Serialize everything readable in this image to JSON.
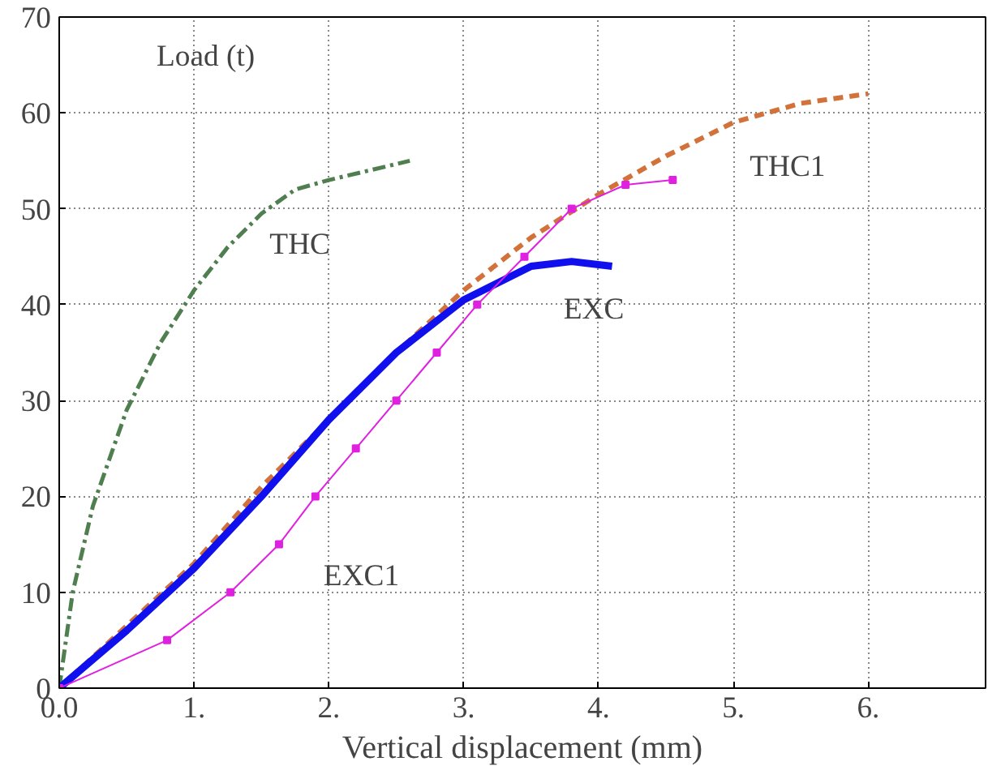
{
  "chart_data": {
    "type": "line",
    "xlabel": "Vertical displacement (mm)",
    "ylabel": "Load (t)",
    "xlim": [
      0,
      6.87
    ],
    "ylim": [
      0,
      70
    ],
    "xticks": [
      {
        "value": 0,
        "label": "0.0"
      },
      {
        "value": 1,
        "label": "1."
      },
      {
        "value": 2,
        "label": "2."
      },
      {
        "value": 3,
        "label": "3."
      },
      {
        "value": 4,
        "label": "4."
      },
      {
        "value": 5,
        "label": "5."
      },
      {
        "value": 6,
        "label": "6."
      }
    ],
    "yticks": [
      0,
      10,
      20,
      30,
      40,
      50,
      60,
      70
    ],
    "grid": true,
    "series": [
      {
        "name": "THC",
        "color": "#4f7f4f",
        "line_style": "dashdot",
        "x": [
          0,
          0.1,
          0.25,
          0.5,
          0.75,
          1.0,
          1.25,
          1.5,
          1.75,
          2.0,
          2.3,
          2.6
        ],
        "values": [
          0,
          10,
          19,
          29,
          36,
          41.5,
          46,
          49.5,
          52,
          53,
          54,
          55
        ]
      },
      {
        "name": "THC1",
        "color": "#d2723a",
        "line_style": "dashed",
        "x": [
          0,
          0.5,
          1,
          1.5,
          2,
          2.5,
          3,
          3.5,
          4,
          4.5,
          5,
          5.5,
          6
        ],
        "values": [
          0,
          6.5,
          13,
          21,
          28,
          35,
          41.5,
          47,
          51.5,
          55.5,
          59,
          61,
          62
        ]
      },
      {
        "name": "EXC",
        "color": "#1010ee",
        "line_style": "solid",
        "x": [
          0,
          0.5,
          1,
          1.5,
          2,
          2.5,
          3,
          3.5,
          3.8,
          4.1
        ],
        "values": [
          0,
          6,
          12.5,
          20,
          28,
          35,
          40.5,
          44,
          44.5,
          44
        ]
      },
      {
        "name": "EXC1",
        "color": "#e020e0",
        "line_style": "solid",
        "marker": "square",
        "x": [
          0,
          0.8,
          1.27,
          1.63,
          1.9,
          2.2,
          2.5,
          2.8,
          3.1,
          3.45,
          3.8,
          4.2,
          4.55
        ],
        "values": [
          0,
          5,
          10,
          15,
          20,
          25,
          30,
          35,
          40,
          45,
          50,
          52.5,
          53
        ]
      }
    ]
  }
}
